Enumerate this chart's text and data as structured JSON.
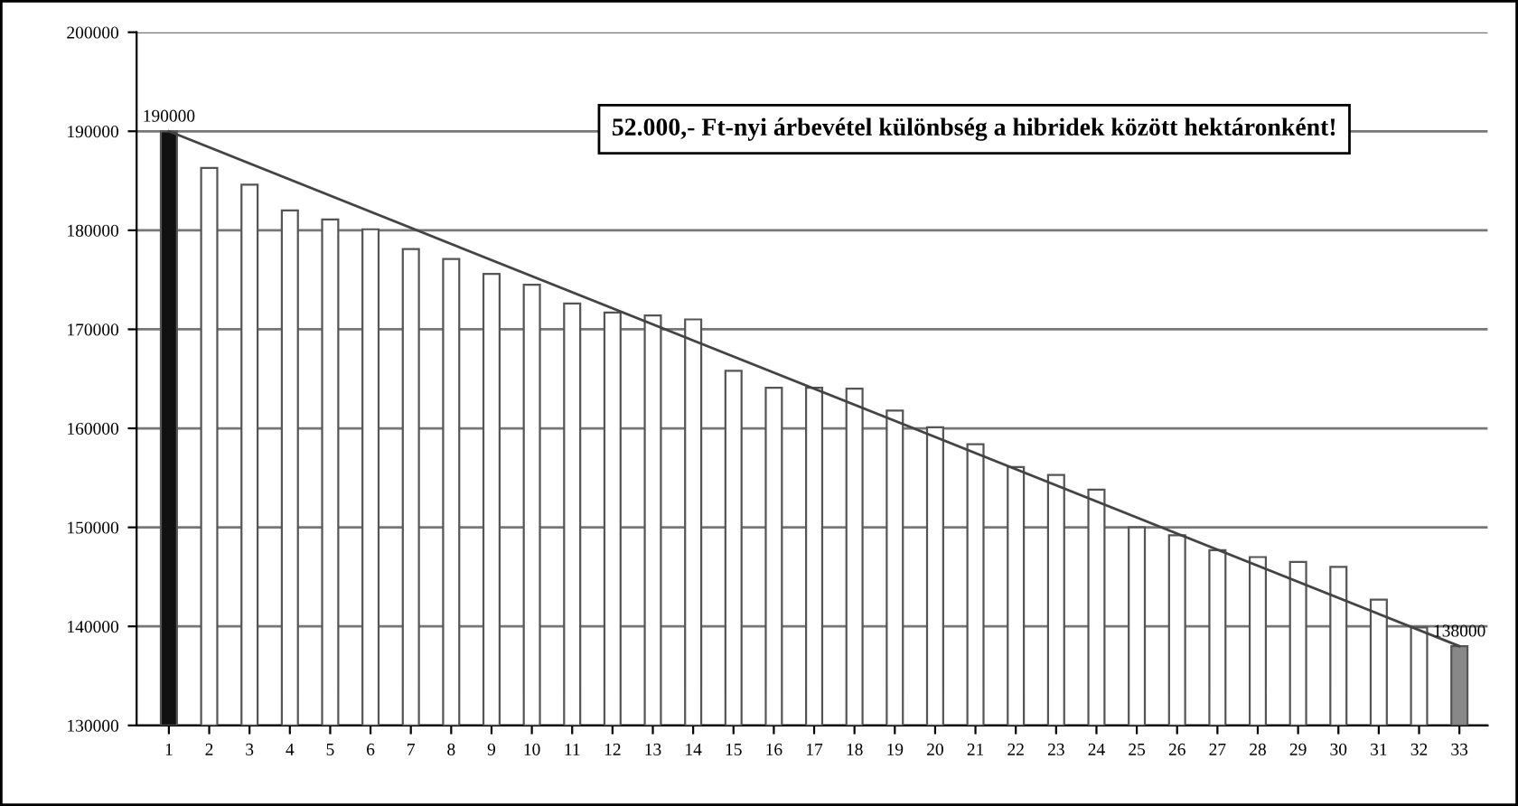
{
  "chart_data": {
    "type": "bar",
    "categories": [
      "1",
      "2",
      "3",
      "4",
      "5",
      "6",
      "7",
      "8",
      "9",
      "10",
      "11",
      "12",
      "13",
      "14",
      "15",
      "16",
      "17",
      "18",
      "19",
      "20",
      "21",
      "22",
      "23",
      "24",
      "25",
      "26",
      "27",
      "28",
      "29",
      "30",
      "31",
      "32",
      "33"
    ],
    "series": [
      {
        "values": [
          190000,
          186300,
          184600,
          182000,
          181100,
          180100,
          178100,
          177100,
          175600,
          174500,
          172600,
          171700,
          171400,
          171000,
          165800,
          164100,
          164100,
          164000,
          161800,
          160100,
          158400,
          156100,
          155300,
          153800,
          150000,
          149200,
          147700,
          147000,
          146500,
          146000,
          142700,
          139900,
          138000
        ],
        "colors": [
          "#111111",
          "#ffffff",
          "#ffffff",
          "#ffffff",
          "#ffffff",
          "#ffffff",
          "#ffffff",
          "#ffffff",
          "#ffffff",
          "#ffffff",
          "#ffffff",
          "#ffffff",
          "#ffffff",
          "#ffffff",
          "#ffffff",
          "#ffffff",
          "#ffffff",
          "#ffffff",
          "#ffffff",
          "#ffffff",
          "#ffffff",
          "#ffffff",
          "#ffffff",
          "#ffffff",
          "#ffffff",
          "#ffffff",
          "#ffffff",
          "#ffffff",
          "#ffffff",
          "#ffffff",
          "#ffffff",
          "#ffffff",
          "#888888"
        ],
        "value_labels": [
          "190000",
          null,
          null,
          null,
          null,
          null,
          null,
          null,
          null,
          null,
          null,
          null,
          null,
          null,
          null,
          null,
          null,
          null,
          null,
          null,
          null,
          null,
          null,
          null,
          null,
          null,
          null,
          null,
          null,
          null,
          null,
          null,
          "138000"
        ]
      },
      {
        "type": "line",
        "color": "#444444",
        "x": [
          "1",
          "33"
        ],
        "values": [
          190000,
          138000
        ]
      }
    ],
    "ylim": [
      130000,
      200000
    ],
    "yticks": [
      130000,
      140000,
      150000,
      160000,
      170000,
      180000,
      190000,
      200000
    ],
    "grid": "y",
    "annotations": [
      "52.000,- Ft-nyi árbevétel különbség a hibridek között hektáronként!"
    ]
  }
}
